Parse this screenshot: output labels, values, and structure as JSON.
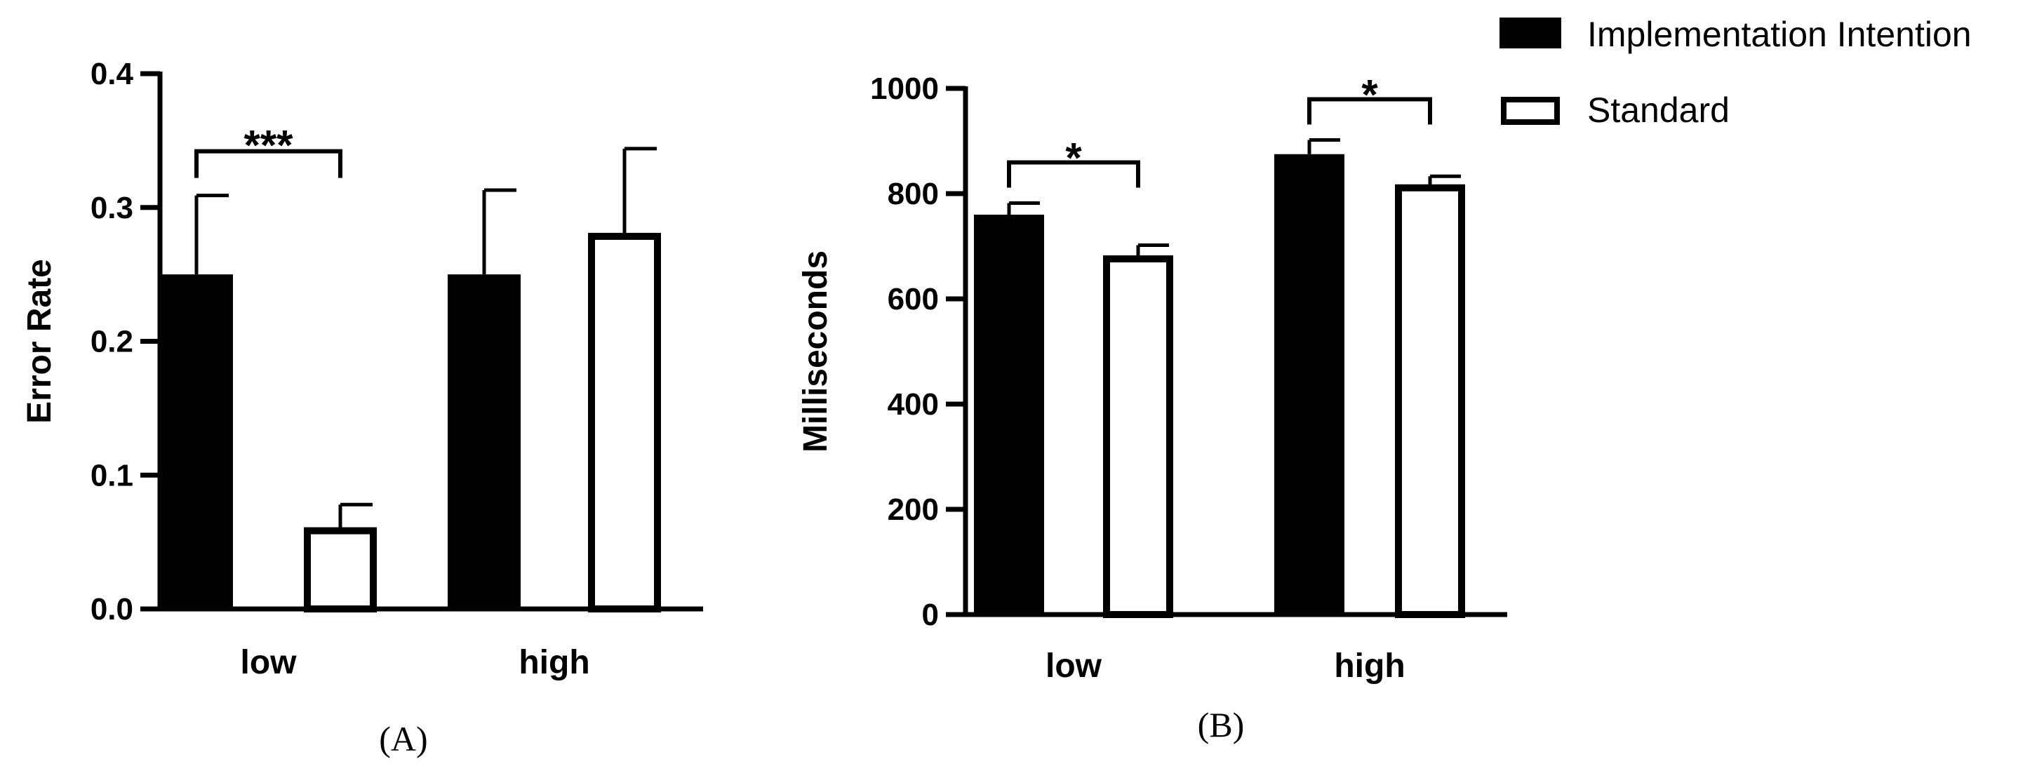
{
  "chart_data": [
    {
      "type": "bar",
      "panel_label": "(A)",
      "ylabel": "Error Rate",
      "xlabel": "",
      "ylim": [
        0,
        0.4
      ],
      "yticks": [
        0.0,
        0.1,
        0.2,
        0.3,
        0.4
      ],
      "ytick_labels": [
        "0.0",
        "0.1",
        "0.2",
        "0.3",
        "0.4"
      ],
      "categories": [
        "low",
        "high"
      ],
      "series": [
        {
          "name": "Implementation Intention",
          "values": [
            0.25,
            0.25
          ],
          "errors": [
            0.059,
            0.063
          ],
          "color": "#000000"
        },
        {
          "name": "Standard",
          "values": [
            0.06,
            0.28
          ],
          "errors": [
            0.018,
            0.064
          ],
          "color": "#ffffff"
        }
      ],
      "significance": [
        {
          "category": "low",
          "label": "***"
        }
      ]
    },
    {
      "type": "bar",
      "panel_label": "(B)",
      "ylabel": "Milliseconds",
      "xlabel": "",
      "ylim": [
        0,
        1000
      ],
      "yticks": [
        0,
        200,
        400,
        600,
        800,
        1000
      ],
      "ytick_labels": [
        "0",
        "200",
        "400",
        "600",
        "800",
        "1000"
      ],
      "categories": [
        "low",
        "high"
      ],
      "series": [
        {
          "name": "Implementation Intention",
          "values": [
            760,
            875
          ],
          "errors": [
            22,
            27
          ],
          "color": "#000000"
        },
        {
          "name": "Standard",
          "values": [
            680,
            815
          ],
          "errors": [
            22,
            18
          ],
          "color": "#ffffff"
        }
      ],
      "significance": [
        {
          "category": "low",
          "label": "*"
        },
        {
          "category": "high",
          "label": "*"
        }
      ]
    }
  ],
  "legend": {
    "placement": "top-right",
    "items": [
      {
        "label": "Implementation Intention",
        "fill": "#000000"
      },
      {
        "label": "Standard",
        "fill": "#ffffff"
      }
    ]
  }
}
